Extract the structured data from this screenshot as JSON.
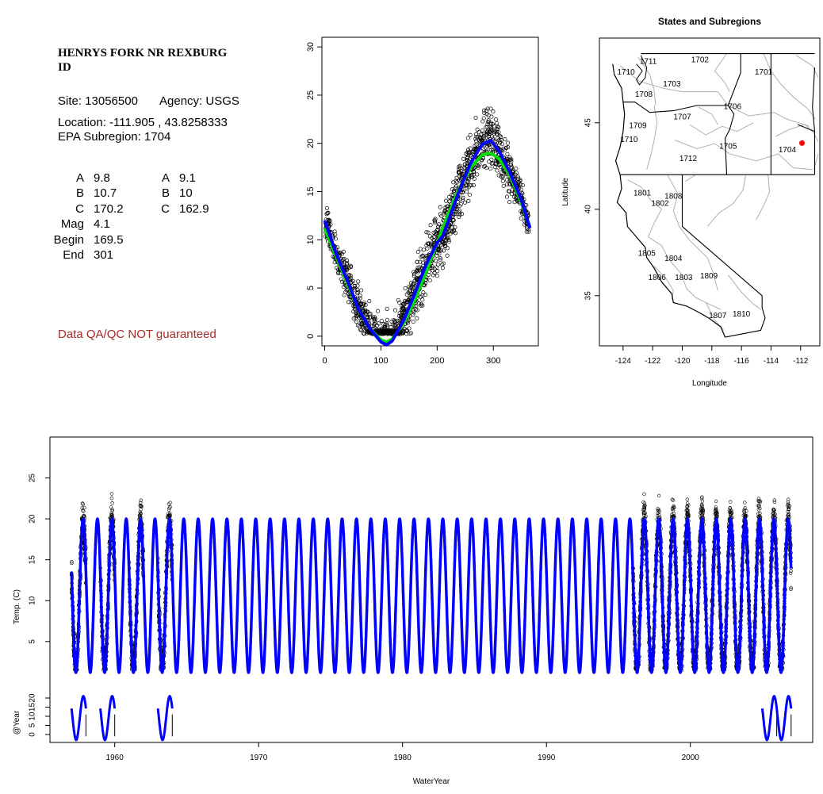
{
  "site": {
    "title_line1": "HENRYS FORK NR REXBURG",
    "title_line2": "ID",
    "site_label": "Site: 13056500",
    "agency_label": "Agency: USGS",
    "location_label": "Location: -111.905 , 43.8258333",
    "subregion_label": "EPA Subregion: 1704",
    "disclaimer": "Data QA/QC NOT guaranteed",
    "disclaimer_color": "#a52a2a"
  },
  "params": {
    "col1": [
      {
        "label": "A",
        "value": "9.8"
      },
      {
        "label": "B",
        "value": "10.7"
      },
      {
        "label": "C",
        "value": "170.2"
      },
      {
        "label": "Mag",
        "value": "4.1"
      },
      {
        "label": "Begin",
        "value": "169.5"
      },
      {
        "label": "End",
        "value": "301"
      }
    ],
    "col2": [
      {
        "label": "A",
        "value": "9.1"
      },
      {
        "label": "B",
        "value": "10"
      },
      {
        "label": "C",
        "value": "162.9"
      }
    ]
  },
  "chart_data": [
    {
      "type": "scatter",
      "xlim": [
        -5,
        380
      ],
      "ylim": [
        -1,
        31
      ],
      "xticks": [
        0,
        100,
        200,
        300
      ],
      "yticks": [
        0,
        5,
        10,
        15,
        20,
        25,
        30
      ],
      "xlabel": "",
      "ylabel": "",
      "series": [
        {
          "kind": "points",
          "color": "#000000",
          "description_note": "daily observations"
        },
        {
          "kind": "line",
          "color": "#00dd00",
          "x": [
            0,
            20,
            40,
            60,
            80,
            100,
            110,
            120,
            140,
            160,
            180,
            200,
            220,
            240,
            260,
            280,
            295,
            310,
            330,
            350,
            365
          ],
          "y": [
            11.2,
            8.3,
            5.5,
            2.8,
            0.8,
            -0.4,
            -0.6,
            -0.3,
            1.3,
            3.7,
            6.6,
            9.7,
            12.7,
            15.4,
            17.5,
            18.8,
            19.0,
            18.4,
            16.6,
            13.8,
            11.3
          ]
        },
        {
          "kind": "line",
          "color": "#0000ff",
          "x": [
            0,
            20,
            40,
            60,
            80,
            100,
            110,
            120,
            140,
            160,
            180,
            200,
            210,
            220,
            240,
            260,
            280,
            295,
            310,
            330,
            350,
            365
          ],
          "y": [
            12.0,
            8.6,
            5.8,
            2.8,
            0.8,
            -0.6,
            -0.9,
            -0.5,
            1.6,
            4.4,
            7.4,
            9.7,
            10.4,
            12.0,
            15.2,
            18.0,
            19.9,
            20.3,
            19.2,
            16.9,
            14.1,
            11.2
          ]
        }
      ]
    },
    {
      "type": "map",
      "title": "States and Subregions",
      "xlabel": "Longitude",
      "ylabel": "Latitude",
      "xlim": [
        -125.6,
        -110.7
      ],
      "ylim": [
        32.1,
        49.9
      ],
      "xticks": [
        -124,
        -122,
        -120,
        -118,
        -116,
        -114,
        -112
      ],
      "yticks": [
        35,
        40,
        45
      ],
      "point": {
        "lon": -111.905,
        "lat": 43.826,
        "color": "#ff0000"
      },
      "region_labels": [
        {
          "text": "1711",
          "lon": -122.3,
          "lat": 48.4
        },
        {
          "text": "1710",
          "lon": -123.8,
          "lat": 47.8
        },
        {
          "text": "1702",
          "lon": -118.8,
          "lat": 48.5
        },
        {
          "text": "1701",
          "lon": -114.5,
          "lat": 47.8
        },
        {
          "text": "1703",
          "lon": -120.7,
          "lat": 47.1
        },
        {
          "text": "1708",
          "lon": -122.6,
          "lat": 46.5
        },
        {
          "text": "1706",
          "lon": -116.6,
          "lat": 45.8
        },
        {
          "text": "1707",
          "lon": -120.0,
          "lat": 45.2
        },
        {
          "text": "1709",
          "lon": -123.0,
          "lat": 44.7
        },
        {
          "text": "1710",
          "lon": -123.6,
          "lat": 43.9
        },
        {
          "text": "1705",
          "lon": -116.9,
          "lat": 43.5
        },
        {
          "text": "1704",
          "lon": -112.9,
          "lat": 43.3
        },
        {
          "text": "1712",
          "lon": -119.6,
          "lat": 42.8
        },
        {
          "text": "1801",
          "lon": -122.7,
          "lat": 40.8
        },
        {
          "text": "1808",
          "lon": -120.6,
          "lat": 40.6
        },
        {
          "text": "1802",
          "lon": -121.5,
          "lat": 40.2
        },
        {
          "text": "1805",
          "lon": -122.4,
          "lat": 37.3
        },
        {
          "text": "1804",
          "lon": -120.6,
          "lat": 37.0
        },
        {
          "text": "1806",
          "lon": -121.7,
          "lat": 35.9
        },
        {
          "text": "1803",
          "lon": -119.9,
          "lat": 35.9
        },
        {
          "text": "1809",
          "lon": -118.2,
          "lat": 36.0
        },
        {
          "text": "1810",
          "lon": -116.0,
          "lat": 33.8
        },
        {
          "text": "1807",
          "lon": -117.6,
          "lat": 33.7
        }
      ]
    },
    {
      "type": "line",
      "xlabel": "WaterYear",
      "ylabel": "Temp. (C)",
      "ylabel_lower": "@Year",
      "xlim": [
        1955.5,
        2008.5
      ],
      "ylim_upper": [
        -2,
        30
      ],
      "ylim_lower": [
        -3,
        22
      ],
      "xticks": [
        1960,
        1970,
        1980,
        1990,
        2000
      ],
      "yticks_upper": [
        5,
        10,
        15,
        20,
        25
      ],
      "yticks_lower": [
        0,
        5,
        10,
        15,
        20
      ],
      "wave": {
        "min": 1.2,
        "max": 20.0,
        "start_year": 1957,
        "end_year": 2007,
        "color": "#0000ff"
      },
      "observed_years": [
        {
          "start": 1957,
          "end": 1958
        },
        {
          "start": 1959,
          "end": 1960
        },
        {
          "start": 1961,
          "end": 1962
        },
        {
          "start": 1963,
          "end": 1964
        },
        {
          "start": 1996,
          "end": 2007
        }
      ],
      "lower_panel_years": [
        1957,
        1959,
        1963,
        2005,
        2006
      ]
    }
  ]
}
